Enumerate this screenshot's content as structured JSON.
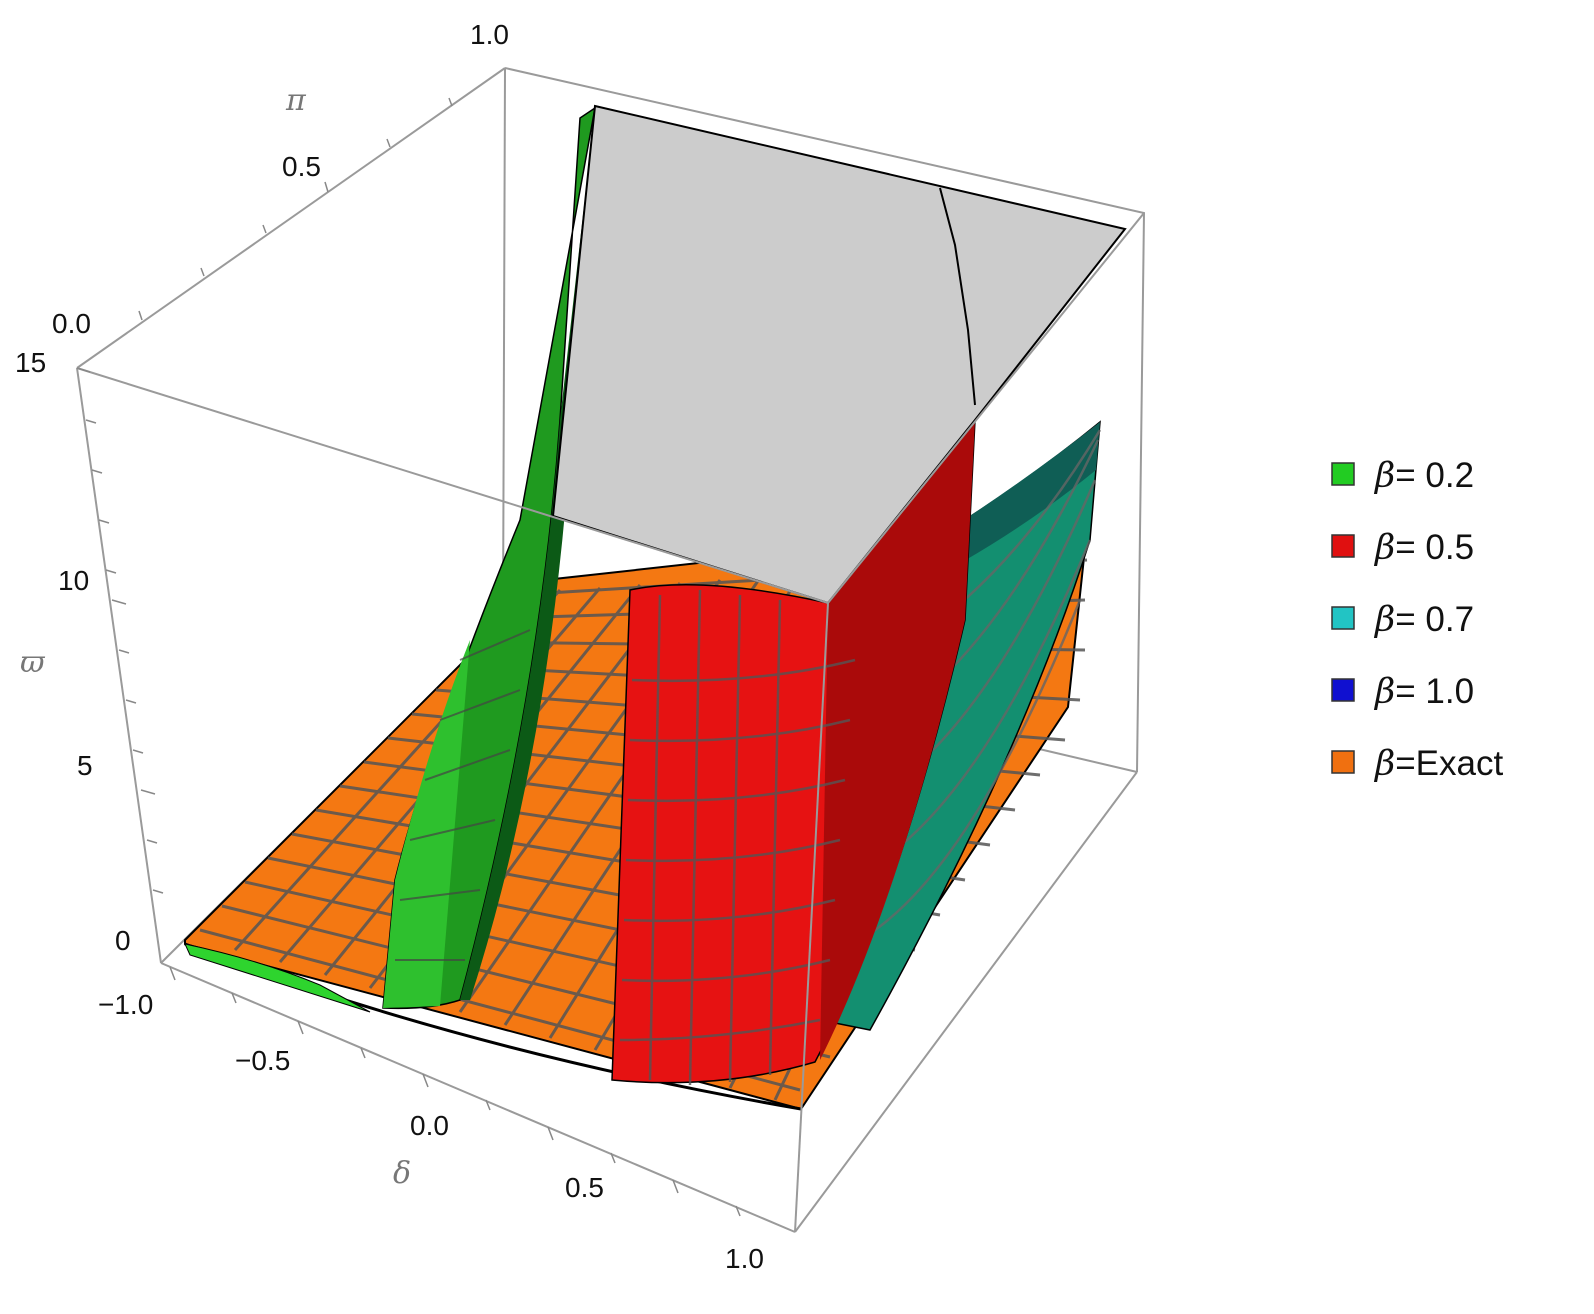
{
  "chart_data": {
    "type": "surface3d",
    "axes": {
      "x": {
        "label": "δ",
        "range": [
          -1.0,
          1.0
        ],
        "ticks": [
          "−1.0",
          "−0.5",
          "0.0",
          "0.5",
          "1.0"
        ]
      },
      "y": {
        "label": "π",
        "range": [
          0.0,
          1.0
        ],
        "ticks": [
          "0.0",
          "0.5",
          "1.0"
        ]
      },
      "z": {
        "label": "ϖ",
        "range": [
          -0.5,
          15
        ],
        "ticks": [
          "0",
          "5",
          "10",
          "15"
        ]
      }
    },
    "box": true,
    "legend": {
      "placement": "right",
      "entries": [
        {
          "label": "= 0.2",
          "prefix": "β",
          "color": "#22cc22"
        },
        {
          "label": "= 0.5",
          "prefix": "β",
          "color": "#e01010"
        },
        {
          "label": "= 0.7",
          "prefix": "β",
          "color": "#22c4c4"
        },
        {
          "label": "= 1.0",
          "prefix": "β",
          "color": "#1010d0"
        },
        {
          "label": "=Exact",
          "prefix": "β",
          "color": "#f07010"
        }
      ]
    },
    "series": [
      {
        "name": "β= 0.2",
        "color": "#1e8e1e",
        "shape": "steep wall near δ≈-0.35, rising above the box top"
      },
      {
        "name": "β= 0.5",
        "color": "#d01010",
        "shape": "steep wall near δ≈0.35, clipped at ϖ=15"
      },
      {
        "name": "β= 0.7",
        "color": "#11776a",
        "shape": "curved sheet rising toward δ=1"
      },
      {
        "name": "β=Exact",
        "color": "#f07010",
        "shape": "nearly flat sheet near ϖ≈0"
      }
    ],
    "clip_color": "#cccccc"
  }
}
